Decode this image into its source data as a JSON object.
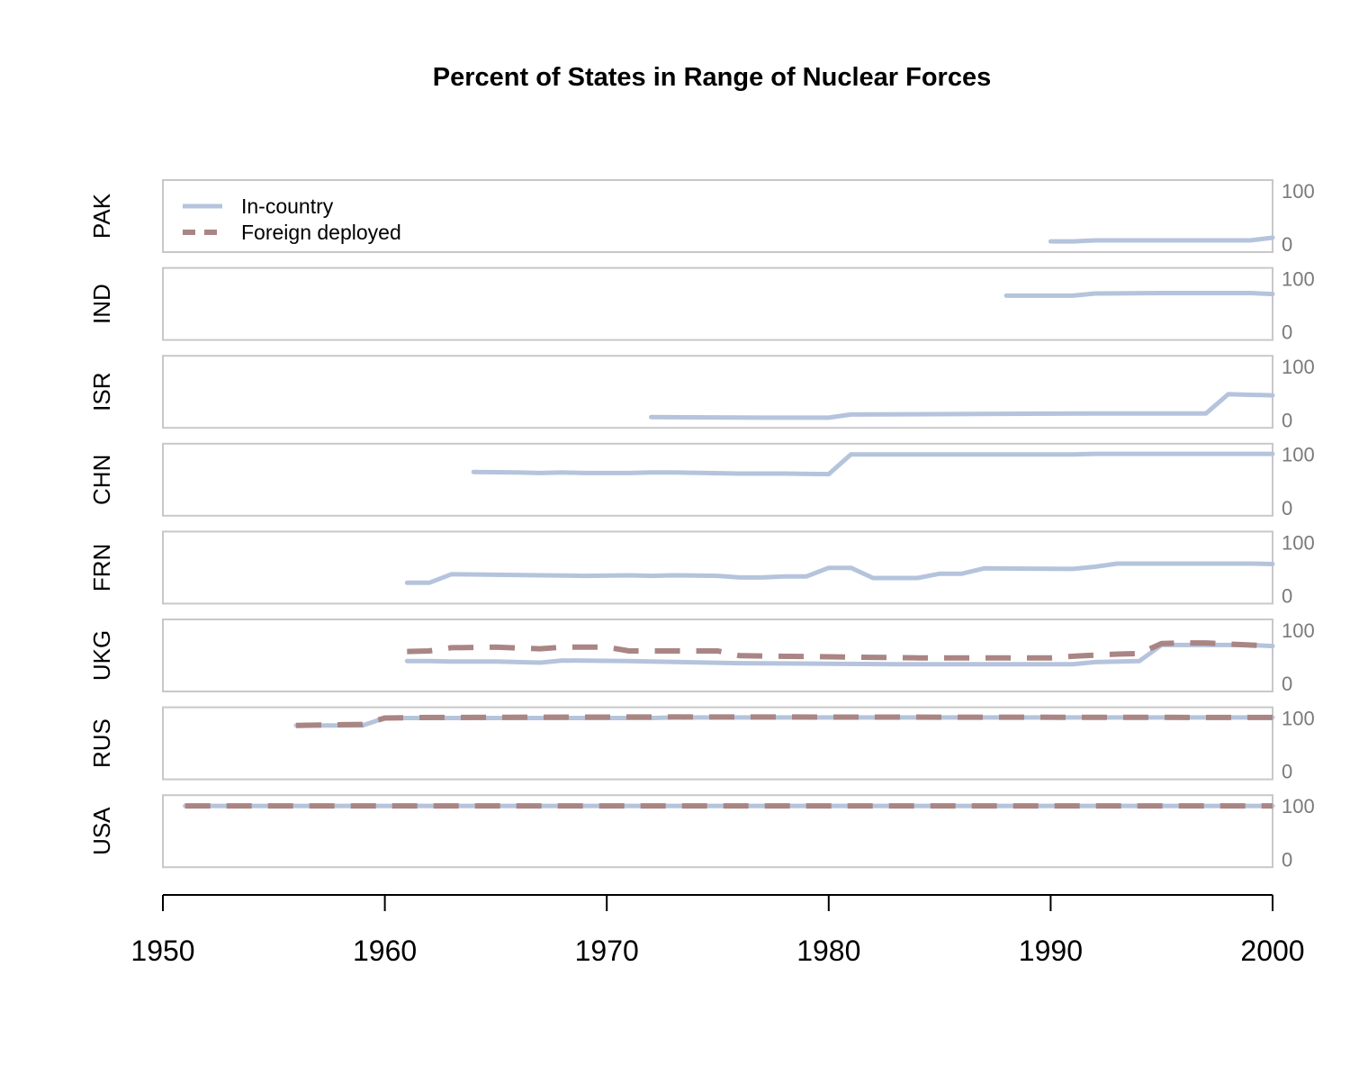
{
  "chart_data": {
    "type": "line",
    "title": "Percent of States in Range of Nuclear Forces",
    "x_ticks": [
      1950,
      1960,
      1970,
      1980,
      1990,
      2000
    ],
    "xlim": [
      1950,
      2000
    ],
    "ylim": [
      -15,
      120
    ],
    "y_ticks": [
      100,
      0
    ],
    "legend": {
      "placement": "top-left",
      "entries": [
        {
          "key": "in_country",
          "label": "In-country"
        },
        {
          "key": "foreign_deployed",
          "label": "Foreign deployed"
        }
      ]
    },
    "colors": {
      "in_country": "#b5c4dc",
      "foreign_deployed": "#a98584"
    },
    "panels": [
      {
        "label": "PAK",
        "in_country": [
          [
            1990,
            5
          ],
          [
            1991,
            5
          ],
          [
            1992,
            7
          ],
          [
            1999,
            7
          ],
          [
            2000,
            12
          ]
        ],
        "foreign_deployed": []
      },
      {
        "label": "IND",
        "in_country": [
          [
            1988,
            68
          ],
          [
            1991,
            68
          ],
          [
            1992,
            72
          ],
          [
            1995,
            73
          ],
          [
            1999,
            73
          ],
          [
            2000,
            71
          ]
        ],
        "foreign_deployed": []
      },
      {
        "label": "ISR",
        "in_country": [
          [
            1972,
            5
          ],
          [
            1977,
            4
          ],
          [
            1980,
            4
          ],
          [
            1981,
            10
          ],
          [
            1992,
            12
          ],
          [
            1997,
            12
          ],
          [
            1998,
            48
          ],
          [
            2000,
            46
          ]
        ],
        "foreign_deployed": []
      },
      {
        "label": "CHN",
        "in_country": [
          [
            1964,
            67
          ],
          [
            1966,
            66
          ],
          [
            1967,
            65
          ],
          [
            1968,
            66
          ],
          [
            1969,
            65
          ],
          [
            1971,
            65
          ],
          [
            1972,
            66
          ],
          [
            1973,
            66
          ],
          [
            1976,
            64
          ],
          [
            1978,
            64
          ],
          [
            1980,
            63
          ],
          [
            1981,
            100
          ],
          [
            1991,
            100
          ],
          [
            1992,
            101
          ],
          [
            2000,
            101
          ]
        ],
        "foreign_deployed": []
      },
      {
        "label": "FRN",
        "in_country": [
          [
            1961,
            24
          ],
          [
            1962,
            24
          ],
          [
            1963,
            40
          ],
          [
            1965,
            39
          ],
          [
            1967,
            38
          ],
          [
            1969,
            37
          ],
          [
            1971,
            38
          ],
          [
            1972,
            37
          ],
          [
            1973,
            38
          ],
          [
            1975,
            37
          ],
          [
            1976,
            34
          ],
          [
            1977,
            34
          ],
          [
            1978,
            36
          ],
          [
            1979,
            36
          ],
          [
            1980,
            52
          ],
          [
            1981,
            52
          ],
          [
            1982,
            33
          ],
          [
            1984,
            33
          ],
          [
            1985,
            41
          ],
          [
            1986,
            41
          ],
          [
            1987,
            51
          ],
          [
            1991,
            50
          ],
          [
            1992,
            54
          ],
          [
            1993,
            60
          ],
          [
            1999,
            60
          ],
          [
            2000,
            59
          ]
        ],
        "foreign_deployed": []
      },
      {
        "label": "UKG",
        "in_country": [
          [
            1961,
            42
          ],
          [
            1962,
            42
          ],
          [
            1963,
            41
          ],
          [
            1965,
            41
          ],
          [
            1967,
            39
          ],
          [
            1968,
            43
          ],
          [
            1971,
            42
          ],
          [
            1972,
            41
          ],
          [
            1976,
            38
          ],
          [
            1980,
            37
          ],
          [
            1983,
            36
          ],
          [
            1991,
            36
          ],
          [
            1992,
            40
          ],
          [
            1994,
            42
          ],
          [
            1995,
            72
          ],
          [
            1999,
            72
          ],
          [
            2000,
            70
          ]
        ],
        "foreign_deployed": [
          [
            1961,
            60
          ],
          [
            1962,
            61
          ],
          [
            1963,
            67
          ],
          [
            1965,
            68
          ],
          [
            1967,
            65
          ],
          [
            1968,
            68
          ],
          [
            1970,
            68
          ],
          [
            1971,
            61
          ],
          [
            1975,
            61
          ],
          [
            1976,
            52
          ],
          [
            1980,
            50
          ],
          [
            1982,
            49
          ],
          [
            1984,
            48
          ],
          [
            1990,
            48
          ],
          [
            1991,
            51
          ],
          [
            1993,
            55
          ],
          [
            1994,
            56
          ],
          [
            1995,
            75
          ],
          [
            1996,
            76
          ],
          [
            1997,
            76
          ],
          [
            2000,
            70
          ]
        ],
        "foreign_deployed_end": null
      },
      {
        "label": "RUS",
        "in_country": [
          [
            1956,
            86
          ],
          [
            1959,
            86
          ],
          [
            1960,
            100
          ],
          [
            1962,
            100
          ],
          [
            1972,
            100
          ],
          [
            1973,
            101
          ],
          [
            2000,
            101
          ]
        ],
        "foreign_deployed": [
          [
            1956,
            86
          ],
          [
            1959,
            88
          ],
          [
            1960,
            100
          ],
          [
            1962,
            101
          ],
          [
            1973,
            102
          ],
          [
            2000,
            101
          ]
        ]
      },
      {
        "label": "USA",
        "in_country": [
          [
            1951,
            100
          ],
          [
            2000,
            100
          ]
        ],
        "foreign_deployed": [
          [
            1951,
            100
          ],
          [
            2000,
            100
          ]
        ]
      }
    ]
  }
}
